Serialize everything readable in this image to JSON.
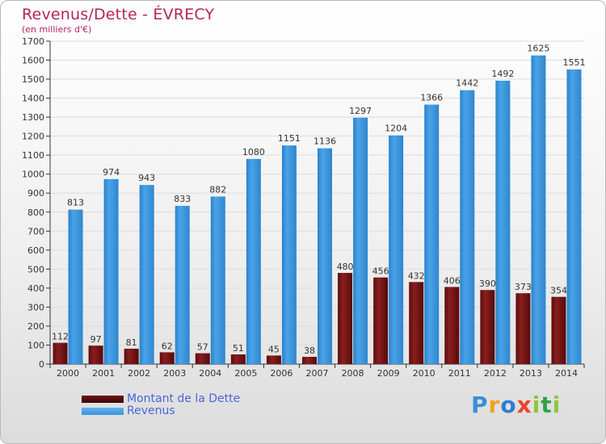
{
  "title": "Revenus/Dette - ÉVRECY",
  "subtitle": "(en milliers d'€)",
  "brand": "Proxiti",
  "colors": {
    "revenus": "#3a93dc",
    "dette": "#6e1414",
    "axis": "#333333",
    "grid": "#dddddd",
    "title": "#b5245a"
  },
  "chart_data": {
    "type": "bar",
    "title": "Revenus/Dette - ÉVRECY",
    "subtitle": "(en milliers d'€)",
    "categories": [
      "2000",
      "2001",
      "2002",
      "2003",
      "2004",
      "2005",
      "2006",
      "2007",
      "2008",
      "2009",
      "2010",
      "2011",
      "2012",
      "2013",
      "2014"
    ],
    "series": [
      {
        "name": "Montant de la Dette",
        "color": "#6e1414",
        "values": [
          112,
          97,
          81,
          62,
          57,
          51,
          45,
          38,
          480,
          456,
          432,
          406,
          390,
          373,
          354
        ]
      },
      {
        "name": "Revenus",
        "color": "#3a93dc",
        "values": [
          813,
          974,
          943,
          833,
          882,
          1080,
          1151,
          1136,
          1297,
          1204,
          1366,
          1442,
          1492,
          1625,
          1551
        ]
      }
    ],
    "ylim": [
      0,
      1700
    ],
    "yticks": [
      0,
      100,
      200,
      300,
      400,
      500,
      600,
      700,
      800,
      900,
      1000,
      1100,
      1200,
      1300,
      1400,
      1500,
      1600,
      1700
    ],
    "grid": true,
    "legend_position": "bottom-left"
  }
}
